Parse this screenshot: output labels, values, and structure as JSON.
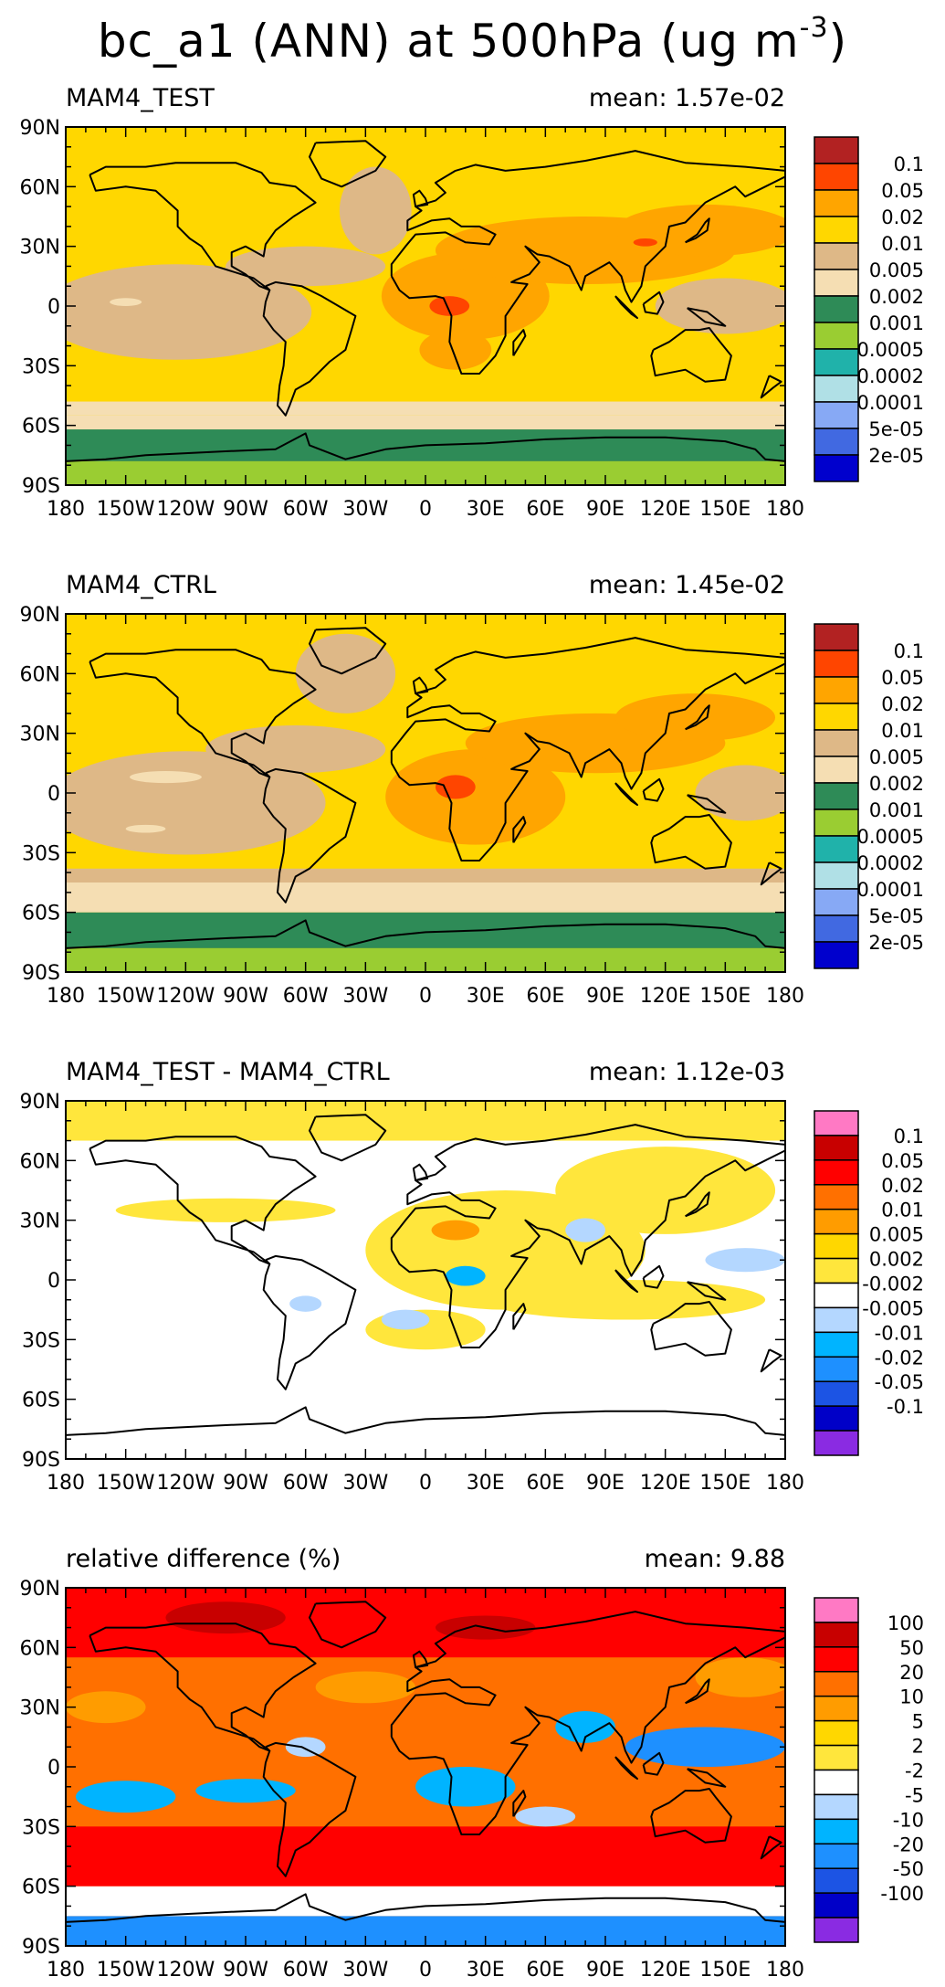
{
  "page": {
    "title_main": "bc_a1 (ANN) at 500hPa (ug m",
    "title_exp": "-3",
    "title_close": ")"
  },
  "colors": {
    "brown": "#b22222",
    "red_orange": "#ff4500",
    "orange": "#ffa500",
    "gold": "#ffd700",
    "tan": "#deb887",
    "wheat": "#f5deb3",
    "sea_green": "#2e8b57",
    "yellow_green": "#9acd32",
    "light_sea_green": "#20b2aa",
    "powder_blue": "#b0e0e6",
    "cornflower": "#87a9f5",
    "royal_blue": "#4169e1",
    "medium_blue": "#0000cd",
    "pink": "#ff79c4",
    "dark_red": "#c80000",
    "red": "#ff0000",
    "orange_red": "#ff7000",
    "dark_orange": "#ff9c00",
    "yellow": "#ffe63c",
    "white": "#ffffff",
    "pale_blue": "#b4d7ff",
    "deep_sky": "#00b4ff",
    "dodger": "#1e90ff",
    "blue2": "#1c54e4",
    "navy_blue": "#0000c8",
    "violet": "#8a2be2",
    "land_line": "#000000"
  },
  "axis": {
    "lat_ticks": [
      "90N",
      "60N",
      "30N",
      "0",
      "30S",
      "60S",
      "90S"
    ],
    "lon_ticks": [
      "180",
      "150W",
      "120W",
      "90W",
      "60W",
      "30W",
      "0",
      "30E",
      "60E",
      "90E",
      "120E",
      "150E",
      "180"
    ]
  },
  "chart_data": [
    {
      "type": "heatmap",
      "title": "MAM4_TEST",
      "mean_label": "mean:  1.57e-02",
      "xlim": [
        -180,
        180
      ],
      "ylim": [
        -90,
        90
      ],
      "levels": [
        "0.1",
        "0.05",
        "0.02",
        "0.01",
        "0.005",
        "0.002",
        "0.001",
        "0.0005",
        "0.0002",
        "0.0001",
        "5e-05",
        "2e-05"
      ],
      "colorbar": [
        "brown",
        "red_orange",
        "orange",
        "gold",
        "tan",
        "wheat",
        "sea_green",
        "yellow_green",
        "light_sea_green",
        "powder_blue",
        "cornflower",
        "royal_blue",
        "medium_blue"
      ],
      "background": "gold",
      "bands": [
        {
          "lat": [
            -90,
            -78
          ],
          "color": "yellow_green"
        },
        {
          "lat": [
            -78,
            -62
          ],
          "color": "sea_green"
        },
        {
          "lat": [
            -62,
            -55
          ],
          "color": "wheat"
        },
        {
          "lat": [
            -55,
            -48
          ],
          "color": "wheat"
        }
      ],
      "blobs": [
        {
          "lon": -125,
          "lat": -3,
          "rx": 68,
          "ry": 24,
          "color": "tan"
        },
        {
          "lon": -60,
          "lat": 20,
          "rx": 40,
          "ry": 10,
          "color": "tan"
        },
        {
          "lon": 150,
          "lat": 0,
          "rx": 35,
          "ry": 14,
          "color": "tan"
        },
        {
          "lon": -25,
          "lat": 48,
          "rx": 18,
          "ry": 22,
          "color": "tan"
        },
        {
          "lon": -150,
          "lat": 2,
          "rx": 8,
          "ry": 2,
          "color": "wheat"
        },
        {
          "lon": 20,
          "lat": 5,
          "rx": 42,
          "ry": 22,
          "color": "orange"
        },
        {
          "lon": 80,
          "lat": 28,
          "rx": 75,
          "ry": 17,
          "color": "orange"
        },
        {
          "lon": 140,
          "lat": 38,
          "rx": 45,
          "ry": 13,
          "color": "orange"
        },
        {
          "lon": 15,
          "lat": -22,
          "rx": 18,
          "ry": 10,
          "color": "orange"
        },
        {
          "lon": 12,
          "lat": 0,
          "rx": 10,
          "ry": 5,
          "color": "red_orange"
        },
        {
          "lon": 110,
          "lat": 32,
          "rx": 6,
          "ry": 2,
          "color": "red_orange"
        }
      ]
    },
    {
      "type": "heatmap",
      "title": "MAM4_CTRL",
      "mean_label": "mean:  1.45e-02",
      "xlim": [
        -180,
        180
      ],
      "ylim": [
        -90,
        90
      ],
      "levels": [
        "0.1",
        "0.05",
        "0.02",
        "0.01",
        "0.005",
        "0.002",
        "0.001",
        "0.0005",
        "0.0002",
        "0.0001",
        "5e-05",
        "2e-05"
      ],
      "colorbar": [
        "brown",
        "red_orange",
        "orange",
        "gold",
        "tan",
        "wheat",
        "sea_green",
        "yellow_green",
        "light_sea_green",
        "powder_blue",
        "cornflower",
        "royal_blue",
        "medium_blue"
      ],
      "background": "gold",
      "bands": [
        {
          "lat": [
            -90,
            -78
          ],
          "color": "yellow_green"
        },
        {
          "lat": [
            -78,
            -60
          ],
          "color": "sea_green"
        },
        {
          "lat": [
            -60,
            -45
          ],
          "color": "wheat"
        },
        {
          "lat": [
            -45,
            -38
          ],
          "color": "tan"
        }
      ],
      "blobs": [
        {
          "lon": -120,
          "lat": -5,
          "rx": 70,
          "ry": 26,
          "color": "tan"
        },
        {
          "lon": -65,
          "lat": 22,
          "rx": 45,
          "ry": 12,
          "color": "tan"
        },
        {
          "lon": -40,
          "lat": 60,
          "rx": 25,
          "ry": 20,
          "color": "tan"
        },
        {
          "lon": 160,
          "lat": 0,
          "rx": 25,
          "ry": 14,
          "color": "tan"
        },
        {
          "lon": -130,
          "lat": 8,
          "rx": 18,
          "ry": 3,
          "color": "wheat"
        },
        {
          "lon": -140,
          "lat": -18,
          "rx": 10,
          "ry": 2,
          "color": "wheat"
        },
        {
          "lon": 25,
          "lat": -2,
          "rx": 45,
          "ry": 24,
          "color": "orange"
        },
        {
          "lon": 85,
          "lat": 25,
          "rx": 65,
          "ry": 15,
          "color": "orange"
        },
        {
          "lon": 135,
          "lat": 38,
          "rx": 40,
          "ry": 12,
          "color": "orange"
        },
        {
          "lon": 15,
          "lat": 3,
          "rx": 10,
          "ry": 6,
          "color": "red_orange"
        }
      ]
    },
    {
      "type": "heatmap",
      "title": "MAM4_TEST - MAM4_CTRL",
      "mean_label": "mean:  1.12e-03",
      "xlim": [
        -180,
        180
      ],
      "ylim": [
        -90,
        90
      ],
      "levels": [
        "0.1",
        "0.05",
        "0.02",
        "0.01",
        "0.005",
        "0.002",
        "-0.002",
        "-0.005",
        "-0.01",
        "-0.02",
        "-0.05",
        "-0.1"
      ],
      "colorbar": [
        "pink",
        "dark_red",
        "red",
        "orange_red",
        "dark_orange",
        "gold",
        "yellow",
        "white",
        "pale_blue",
        "deep_sky",
        "dodger",
        "blue2",
        "navy_blue",
        "violet"
      ],
      "background": "white",
      "bands": [
        {
          "lat": [
            70,
            90
          ],
          "color": "yellow"
        }
      ],
      "blobs": [
        {
          "lon": 40,
          "lat": 15,
          "rx": 70,
          "ry": 30,
          "color": "yellow"
        },
        {
          "lon": 120,
          "lat": 45,
          "rx": 55,
          "ry": 22,
          "color": "yellow"
        },
        {
          "lon": 100,
          "lat": -10,
          "rx": 70,
          "ry": 10,
          "color": "yellow"
        },
        {
          "lon": -100,
          "lat": 35,
          "rx": 55,
          "ry": 6,
          "color": "yellow"
        },
        {
          "lon": 0,
          "lat": -25,
          "rx": 30,
          "ry": 10,
          "color": "yellow"
        },
        {
          "lon": 15,
          "lat": 25,
          "rx": 12,
          "ry": 5,
          "color": "dark_orange"
        },
        {
          "lon": 20,
          "lat": 2,
          "rx": 10,
          "ry": 5,
          "color": "deep_sky"
        },
        {
          "lon": 80,
          "lat": 25,
          "rx": 10,
          "ry": 6,
          "color": "pale_blue"
        },
        {
          "lon": 160,
          "lat": 10,
          "rx": 20,
          "ry": 6,
          "color": "pale_blue"
        },
        {
          "lon": -10,
          "lat": -20,
          "rx": 12,
          "ry": 5,
          "color": "pale_blue"
        },
        {
          "lon": -60,
          "lat": -12,
          "rx": 8,
          "ry": 4,
          "color": "pale_blue"
        }
      ]
    },
    {
      "type": "heatmap",
      "title": "relative difference (%)",
      "mean_label": "mean:   9.88",
      "xlim": [
        -180,
        180
      ],
      "ylim": [
        -90,
        90
      ],
      "levels": [
        "100",
        "50",
        "20",
        "10",
        "5",
        "2",
        "-2",
        "-5",
        "-10",
        "-20",
        "-50",
        "-100"
      ],
      "colorbar": [
        "pink",
        "dark_red",
        "red",
        "orange_red",
        "dark_orange",
        "gold",
        "yellow",
        "white",
        "pale_blue",
        "deep_sky",
        "dodger",
        "blue2",
        "navy_blue",
        "violet"
      ],
      "background": "orange_red",
      "bands": [
        {
          "lat": [
            -90,
            -75
          ],
          "color": "dodger"
        },
        {
          "lat": [
            -75,
            -60
          ],
          "color": "white"
        },
        {
          "lat": [
            -60,
            -30
          ],
          "color": "red"
        },
        {
          "lat": [
            55,
            90
          ],
          "color": "red"
        }
      ],
      "blobs": [
        {
          "lon": 140,
          "lat": 10,
          "rx": 40,
          "ry": 10,
          "color": "dodger"
        },
        {
          "lon": -150,
          "lat": -15,
          "rx": 25,
          "ry": 8,
          "color": "deep_sky"
        },
        {
          "lon": -90,
          "lat": -12,
          "rx": 25,
          "ry": 6,
          "color": "deep_sky"
        },
        {
          "lon": 20,
          "lat": -10,
          "rx": 25,
          "ry": 10,
          "color": "deep_sky"
        },
        {
          "lon": 80,
          "lat": 20,
          "rx": 15,
          "ry": 8,
          "color": "deep_sky"
        },
        {
          "lon": -60,
          "lat": 10,
          "rx": 10,
          "ry": 5,
          "color": "pale_blue"
        },
        {
          "lon": 60,
          "lat": -25,
          "rx": 15,
          "ry": 5,
          "color": "pale_blue"
        },
        {
          "lon": -160,
          "lat": 30,
          "rx": 20,
          "ry": 8,
          "color": "dark_orange"
        },
        {
          "lon": -30,
          "lat": 40,
          "rx": 25,
          "ry": 8,
          "color": "dark_orange"
        },
        {
          "lon": 160,
          "lat": 45,
          "rx": 25,
          "ry": 10,
          "color": "dark_orange"
        },
        {
          "lon": -100,
          "lat": 75,
          "rx": 30,
          "ry": 8,
          "color": "dark_red"
        },
        {
          "lon": 30,
          "lat": 70,
          "rx": 25,
          "ry": 6,
          "color": "dark_red"
        }
      ]
    }
  ]
}
